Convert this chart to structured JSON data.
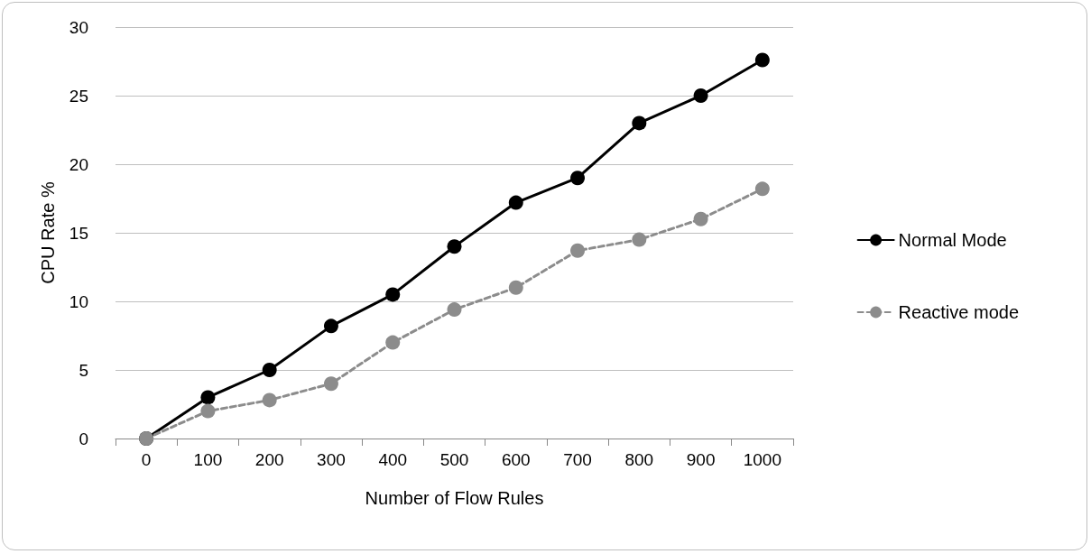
{
  "chart_data": {
    "type": "line",
    "xlabel": "Number of Flow Rules",
    "ylabel": "CPU Rate %",
    "categories": [
      "0",
      "100",
      "200",
      "300",
      "400",
      "500",
      "600",
      "700",
      "800",
      "900",
      "1000"
    ],
    "series": [
      {
        "name": "Normal Mode",
        "color": "#000000",
        "line_style": "solid",
        "values": [
          0,
          3,
          5,
          8.2,
          10.5,
          14,
          17.2,
          19,
          23,
          25,
          27.6
        ]
      },
      {
        "name": "Reactive mode",
        "color": "#8c8c8c",
        "line_style": "dashed",
        "values": [
          0,
          2,
          2.8,
          4,
          7,
          9.4,
          11,
          13.7,
          14.5,
          16,
          18.2
        ]
      }
    ],
    "ylim": [
      0,
      30
    ],
    "yticks": [
      0,
      5,
      10,
      15,
      20,
      25,
      30
    ],
    "grid": "y",
    "legend": "right",
    "marker": "circle"
  }
}
